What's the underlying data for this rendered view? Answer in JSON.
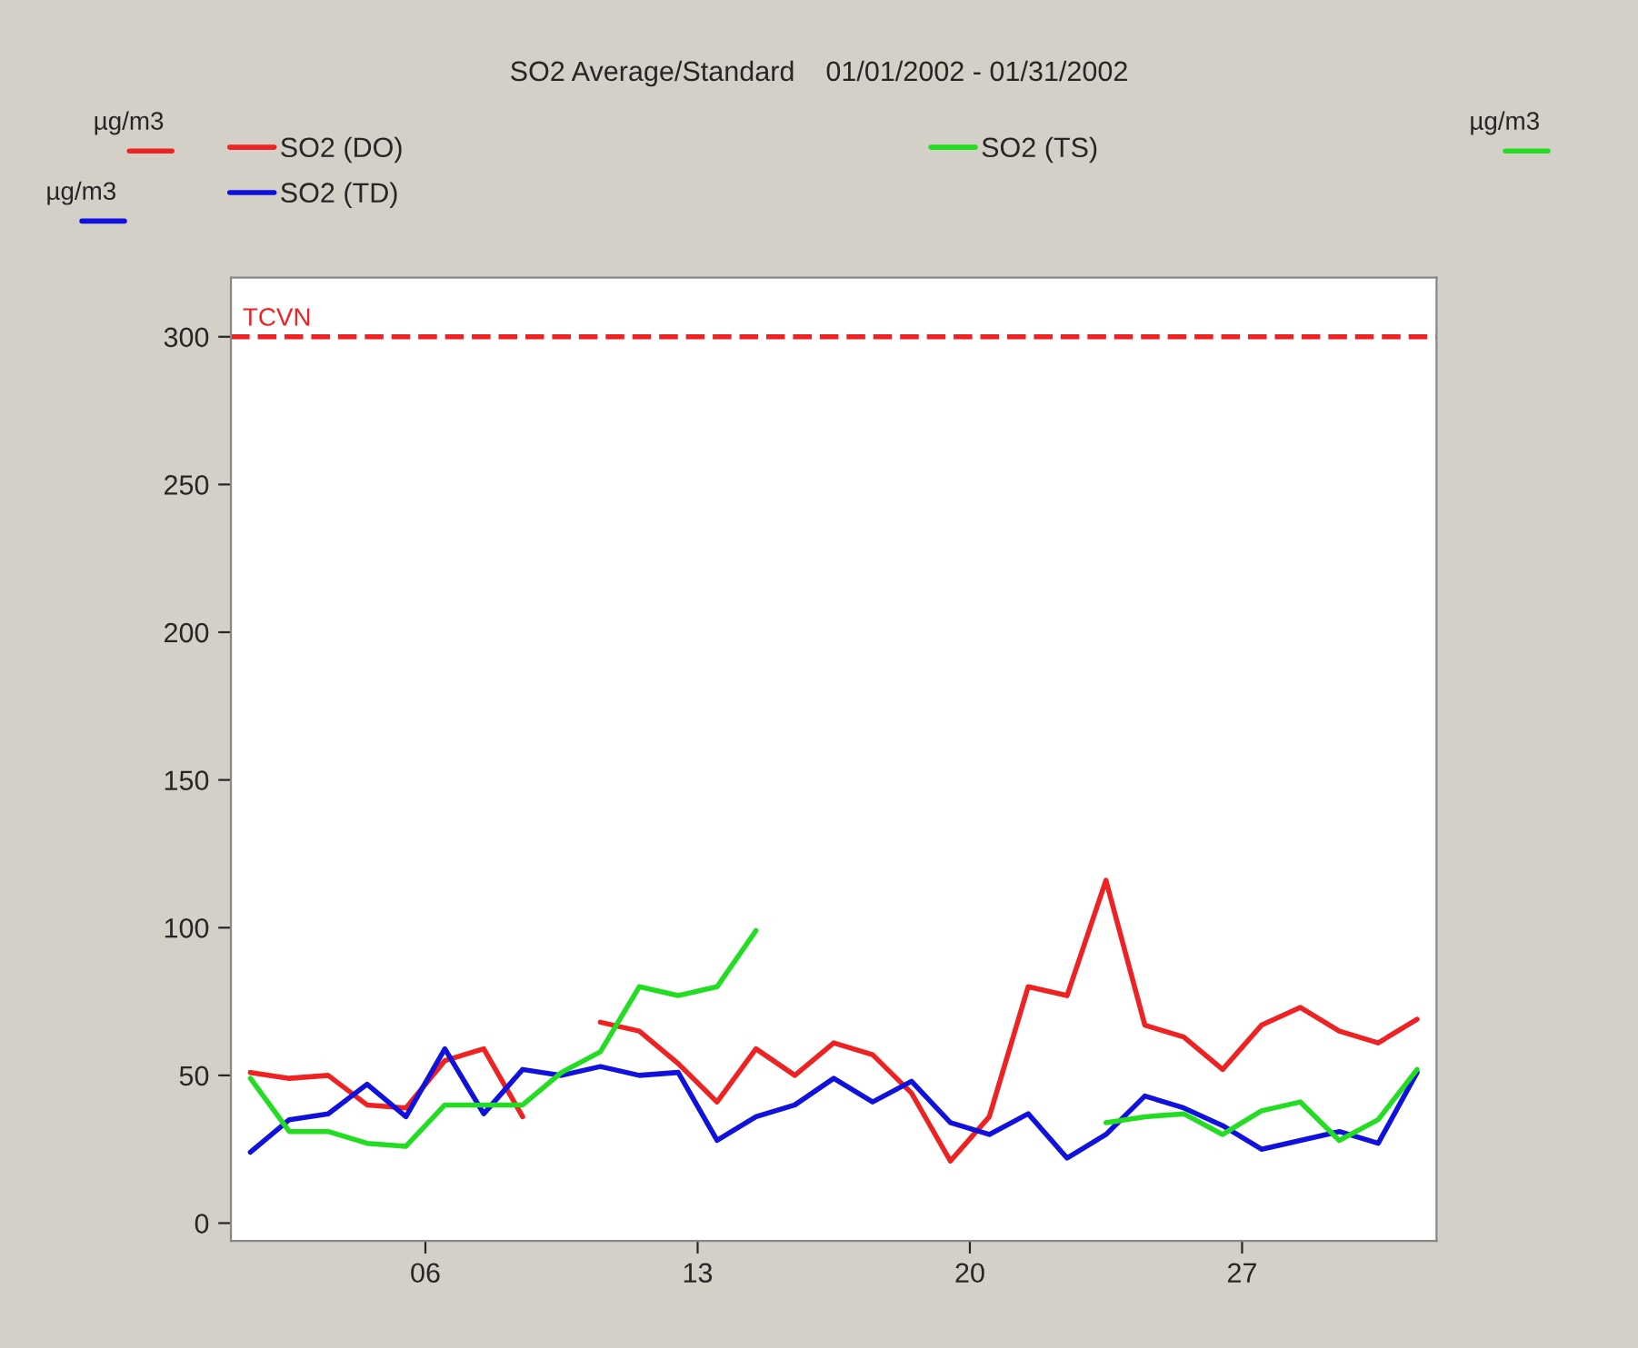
{
  "chart_data": {
    "type": "line",
    "title": "SO2 Average/Standard    01/01/2002 - 01/31/2002",
    "annotations": [
      "µg/m3",
      "µg/m3",
      "µg/m3"
    ],
    "x": [
      1.5,
      2.5,
      3.5,
      4.5,
      5.5,
      6.5,
      7.5,
      8.5,
      9.5,
      10.5,
      11.5,
      12.5,
      13.5,
      14.5,
      15.5,
      16.5,
      17.5,
      18.5,
      19.5,
      20.5,
      21.5,
      22.5,
      23.5,
      24.5,
      25.5,
      26.5,
      27.5,
      28.5,
      29.5,
      30.5,
      31.5
    ],
    "series": [
      {
        "name": "SO2 (DO)",
        "color": "#ee2222",
        "values": [
          51,
          49,
          50,
          40,
          39,
          55,
          59,
          36,
          null,
          68,
          65,
          54,
          41,
          59,
          50,
          61,
          57,
          44,
          21,
          36,
          80,
          77,
          116,
          67,
          63,
          52,
          67,
          73,
          65,
          61,
          69
        ]
      },
      {
        "name": "SO2 (TD)",
        "color": "#1111dd",
        "values": [
          24,
          35,
          37,
          47,
          36,
          59,
          37,
          52,
          50,
          53,
          50,
          51,
          28,
          36,
          40,
          49,
          41,
          48,
          34,
          30,
          37,
          22,
          30,
          43,
          39,
          33,
          25,
          28,
          31,
          27,
          51
        ]
      },
      {
        "name": "SO2 (TS)",
        "color": "#22dd22",
        "values": [
          49,
          31,
          31,
          27,
          26,
          40,
          40,
          40,
          51,
          58,
          80,
          77,
          80,
          99,
          null,
          null,
          null,
          null,
          null,
          null,
          null,
          null,
          34,
          36,
          37,
          30,
          38,
          41,
          28,
          35,
          52
        ]
      }
    ],
    "xlim": [
      1,
      32
    ],
    "xticks": [
      {
        "value": 6,
        "label": "06"
      },
      {
        "value": 13,
        "label": "13"
      },
      {
        "value": 20,
        "label": "20"
      },
      {
        "value": 27,
        "label": "27"
      }
    ],
    "ylim": [
      -6,
      320
    ],
    "yticks": [
      0,
      50,
      100,
      150,
      200,
      250,
      300
    ],
    "ref_lines": [
      {
        "axis": "y",
        "value": 300,
        "label": "TCVN",
        "color": "#ee2222",
        "line_style": "dashed"
      }
    ],
    "legend": "top left",
    "grid": false,
    "marker": "none",
    "line_style": "solid"
  }
}
